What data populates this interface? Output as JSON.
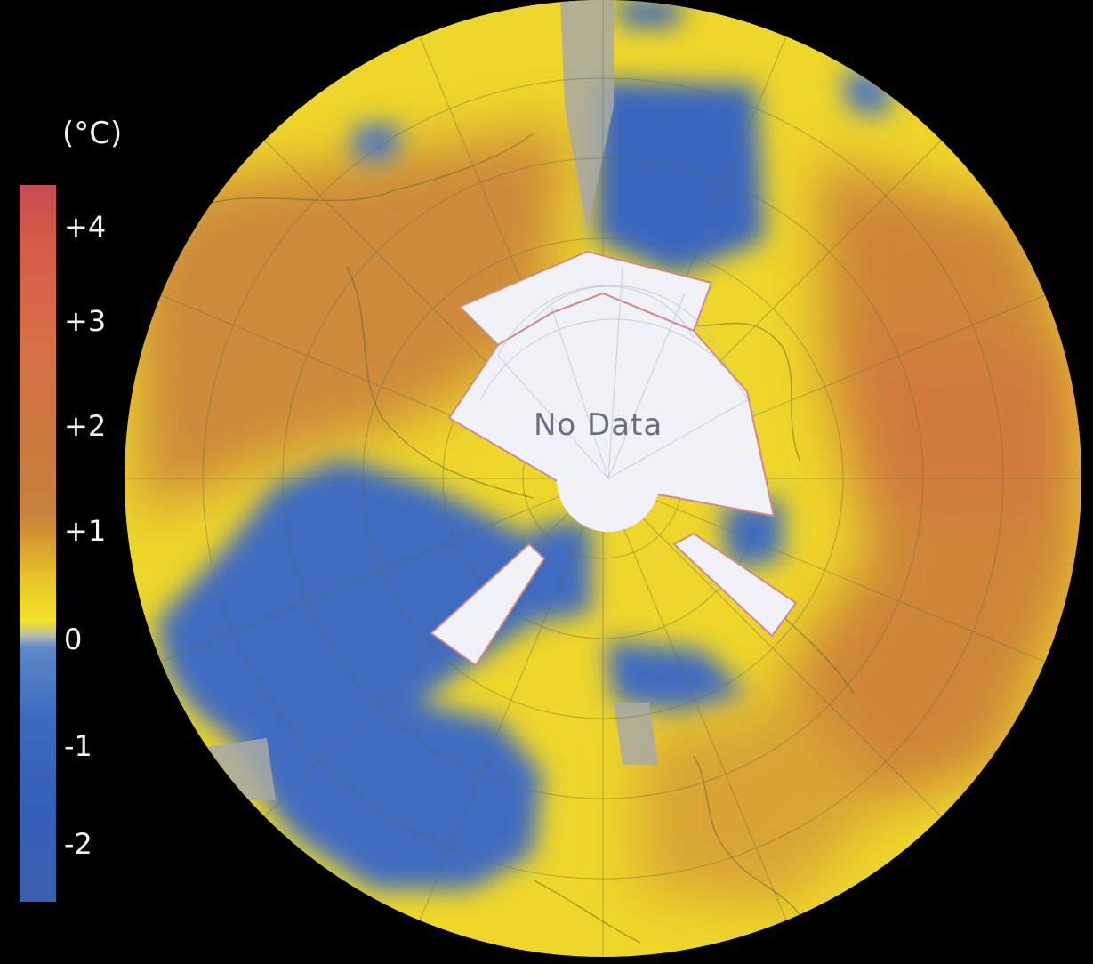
{
  "legend": {
    "unit": "(°C)",
    "ticks": [
      "+4",
      "+3",
      "+2",
      "+1",
      "0",
      "-1",
      "-2"
    ]
  },
  "map": {
    "no_data_label": "No Data"
  },
  "colors": {
    "background": "#000000",
    "warm_max": "#c94a55",
    "warm": "#c8823c",
    "neutral": "#f4e42a",
    "zero_gray": "#b9b9b4",
    "cool": "#3d69bd",
    "no_data": "#f1f2f7"
  }
}
